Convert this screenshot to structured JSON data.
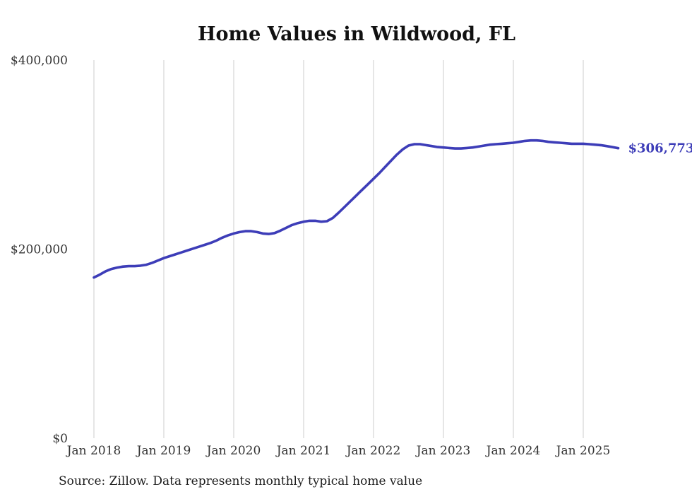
{
  "title": "Home Values in Wildwood, FL",
  "source_note": "Source: Zillow. Data represents monthly typical home value",
  "end_label": "$306,773",
  "colors": {
    "line": "#3d3db8",
    "grid": "#cccccc",
    "axis_text": "#333333",
    "title_text": "#111111"
  },
  "chart_data": {
    "type": "line",
    "title": "Home Values in Wildwood, FL",
    "x_start": "Jan 2018",
    "x_end": "Jul 2025",
    "frequency": "monthly",
    "x_tick_labels": [
      "Jan 2018",
      "Jan 2019",
      "Jan 2020",
      "Jan 2021",
      "Jan 2022",
      "Jan 2023",
      "Jan 2024",
      "Jan 2025"
    ],
    "y_ticks": [
      0,
      200000,
      400000
    ],
    "y_tick_labels": [
      "$0",
      "$200,000",
      "$400,000"
    ],
    "ylim": [
      0,
      400000
    ],
    "grid": "vertical-only",
    "legend": "none",
    "final_value": 306773,
    "series": [
      {
        "name": "Typical home value",
        "values": [
          170000,
          173000,
          176500,
          179000,
          180500,
          181500,
          182000,
          182000,
          182500,
          183500,
          185500,
          188000,
          190500,
          192500,
          194500,
          196500,
          198500,
          200500,
          202500,
          204500,
          206500,
          209000,
          212000,
          214500,
          216500,
          218000,
          219000,
          219000,
          218000,
          216500,
          216000,
          217000,
          219500,
          222500,
          225500,
          227500,
          229000,
          230000,
          230000,
          229000,
          229500,
          233000,
          238500,
          244500,
          250500,
          256500,
          262500,
          268500,
          274500,
          280500,
          287000,
          293500,
          300000,
          305500,
          309500,
          311000,
          311000,
          310000,
          309000,
          308000,
          307500,
          307000,
          306500,
          306500,
          307000,
          307500,
          308500,
          309500,
          310500,
          311000,
          311500,
          312000,
          312500,
          313500,
          314500,
          315000,
          315000,
          314500,
          313500,
          313000,
          312500,
          312000,
          311500,
          311500,
          311500,
          311000,
          310500,
          310000,
          309000,
          308000,
          306773
        ]
      }
    ]
  }
}
